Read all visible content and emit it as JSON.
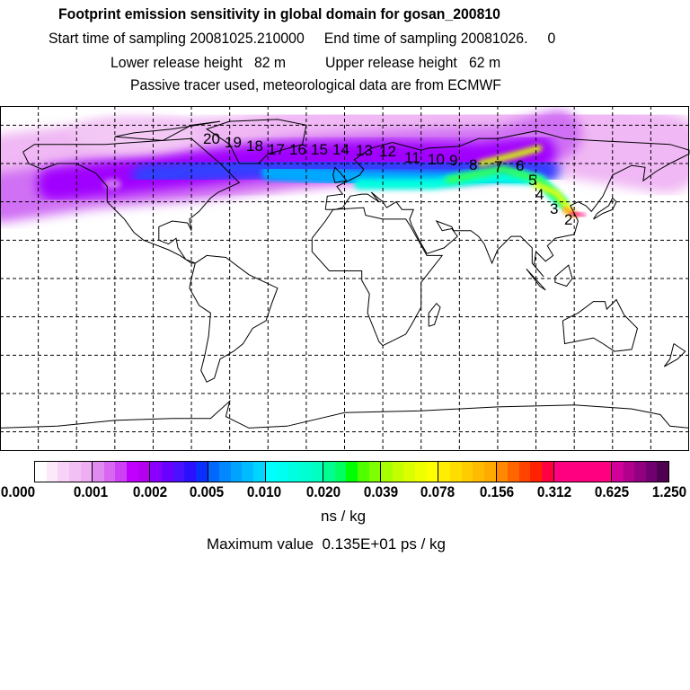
{
  "header": {
    "title": "Footprint emission sensitivity in global domain for gosan_200810",
    "sampling": "Start time of sampling 20081025.210000     End time of sampling 20081026.     0",
    "release": "Lower release height   82 m          Upper release height   62 m",
    "note": "Passive tracer used, meteorological data are from ECMWF"
  },
  "map": {
    "station": "gosan",
    "trajectory_labels": [
      "20",
      "19",
      "18",
      "17",
      "16",
      "15",
      "14",
      "13",
      "12",
      "11",
      "10",
      "9",
      "8",
      "7",
      "6",
      "5",
      "4",
      "3",
      "2"
    ]
  },
  "colorbar": {
    "labels": [
      "0.000",
      "0.001",
      "0.002",
      "0.005",
      "0.010",
      "0.020",
      "0.039",
      "0.078",
      "0.156",
      "0.312",
      "0.625",
      "1.250"
    ],
    "unit": "ns / kg",
    "colors": [
      [
        "#ffffff",
        "#fbe8fb",
        "#f7d4f7",
        "#f3c0f5",
        "#efaef3"
      ],
      [
        "#e08af2",
        "#d868f2",
        "#cc40f6",
        "#c000ff",
        "#b400ee"
      ],
      [
        "#8a00ff",
        "#6a00ff",
        "#4a10ff",
        "#2a10ff",
        "#0a30ff"
      ],
      [
        "#0068ff",
        "#0088ff",
        "#00a4ff",
        "#00bcff",
        "#00d4ff"
      ],
      [
        "#00ffff",
        "#00fff0",
        "#00ffe0",
        "#00ffd0",
        "#00ffc0"
      ],
      [
        "#00ff90",
        "#00ff60",
        "#00ff00",
        "#50ff00",
        "#80ff00"
      ],
      [
        "#a8ff00",
        "#c4ff00",
        "#dcff00",
        "#eeff00",
        "#ffff00"
      ],
      [
        "#ffee00",
        "#ffdd00",
        "#ffcc00",
        "#ffbb00",
        "#ffaa00"
      ],
      [
        "#ff8800",
        "#ff6600",
        "#ff4400",
        "#ff2200",
        "#ff0040"
      ],
      [
        "#ff0080",
        "#ff0080",
        "#ff0080",
        "#ff0080",
        "#ff0080"
      ],
      [
        "#d00098",
        "#b0008c",
        "#900080",
        "#700070",
        "#500050"
      ]
    ]
  },
  "max_value": "Maximum value  0.135E+01 ps / kg"
}
